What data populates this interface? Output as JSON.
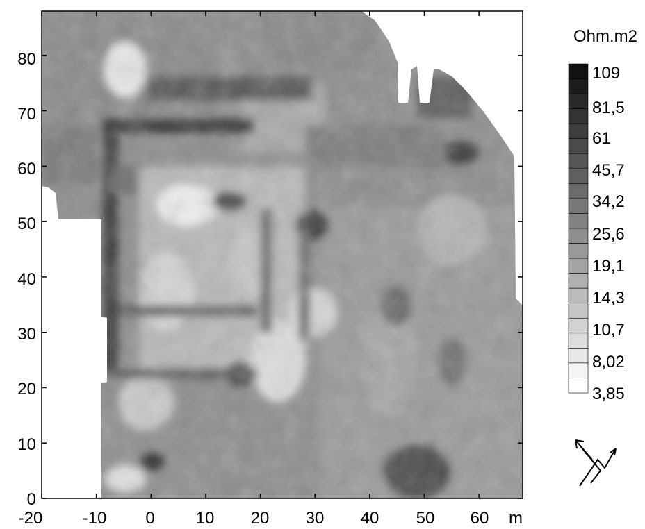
{
  "map": {
    "x_unit": "m",
    "x_ticks": [
      "-20",
      "-10",
      "0",
      "10",
      "20",
      "30",
      "40",
      "50",
      "60"
    ],
    "y_ticks": [
      "0",
      "10",
      "20",
      "30",
      "40",
      "50",
      "60",
      "70",
      "80"
    ],
    "x_range": [
      -20,
      68
    ],
    "y_range": [
      0,
      88
    ],
    "colormap": "grayscale, white = low resistivity, black = high resistivity"
  },
  "legend": {
    "unit": "Ohm.m2",
    "levels": [
      "109",
      "81,5",
      "61",
      "45,7",
      "34,2",
      "25,6",
      "19,1",
      "14,3",
      "10,7",
      "8,02",
      "3,85"
    ],
    "colors": {
      "high": "#111111",
      "low": "#ffffff"
    }
  },
  "north_arrow": {
    "icon": "north-arrow-icon"
  }
}
